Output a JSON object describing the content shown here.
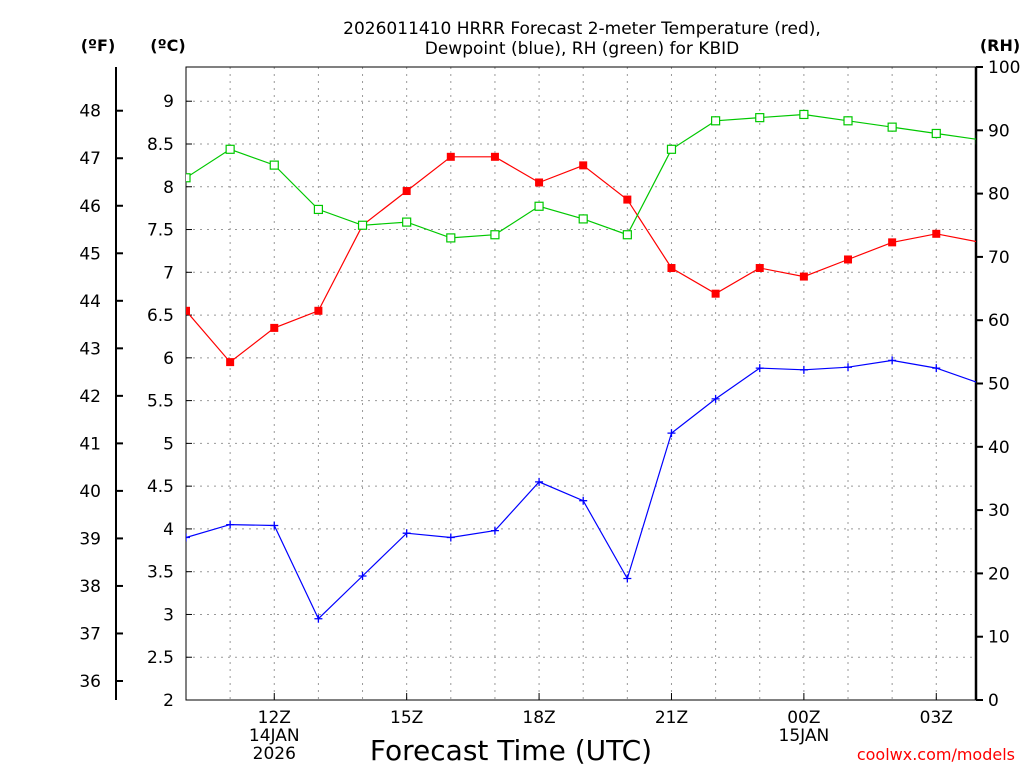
{
  "chart_data": {
    "type": "line",
    "title_line1": "2026011410 HRRR Forecast 2-meter Temperature (red),",
    "title_line2": "Dewpoint (blue), RH (green) for KBID",
    "xlabel": "Forecast Time (UTC)",
    "credit": "coolwx.com/models",
    "unit_f": "(ºF)",
    "unit_c": "(ºC)",
    "unit_rh": "(RH)",
    "colors": {
      "temperature": "#ff0000",
      "dewpoint": "#0000ff",
      "rh": "#00c800",
      "grid": "#999999"
    },
    "x": [
      "10Z",
      "11Z",
      "12Z",
      "13Z",
      "14Z",
      "15Z",
      "16Z",
      "17Z",
      "18Z",
      "19Z",
      "20Z",
      "21Z",
      "22Z",
      "23Z",
      "00Z",
      "01Z",
      "02Z",
      "03Z",
      "04Z"
    ],
    "xlim": [
      10,
      27.9
    ],
    "x_ticks": [
      {
        "hour": 12,
        "lines": [
          "12Z",
          "14JAN",
          "2026"
        ]
      },
      {
        "hour": 15,
        "lines": [
          "15Z"
        ]
      },
      {
        "hour": 18,
        "lines": [
          "18Z"
        ]
      },
      {
        "hour": 21,
        "lines": [
          "21Z"
        ]
      },
      {
        "hour": 24,
        "lines": [
          "00Z",
          "15JAN"
        ]
      },
      {
        "hour": 27,
        "lines": [
          "03Z"
        ]
      }
    ],
    "ylim_c": [
      2,
      9.4
    ],
    "y_ticks_c": [
      "2",
      "2.5",
      "3",
      "3.5",
      "4",
      "4.5",
      "5",
      "5.5",
      "6",
      "6.5",
      "7",
      "7.5",
      "8",
      "8.5",
      "9"
    ],
    "y_ticks_f": [
      "36",
      "37",
      "38",
      "39",
      "40",
      "41",
      "42",
      "43",
      "44",
      "45",
      "46",
      "47",
      "48"
    ],
    "ylim_rh": [
      0,
      100
    ],
    "y_ticks_rh": [
      "0",
      "10",
      "20",
      "30",
      "40",
      "50",
      "60",
      "70",
      "80",
      "90",
      "100"
    ],
    "series": [
      {
        "name": "Temperature",
        "key": "temperature",
        "units": "C",
        "marker": "filled-square",
        "values": [
          6.55,
          5.95,
          6.35,
          6.55,
          7.55,
          7.95,
          8.35,
          8.35,
          8.05,
          8.25,
          7.85,
          7.05,
          6.75,
          7.05,
          6.95,
          7.15,
          7.35,
          7.45,
          7.35
        ]
      },
      {
        "name": "Dewpoint",
        "key": "dewpoint",
        "units": "C",
        "marker": "plus",
        "values": [
          3.9,
          4.05,
          4.04,
          2.95,
          3.45,
          3.95,
          3.9,
          3.98,
          4.55,
          4.33,
          3.42,
          5.12,
          5.52,
          5.88,
          5.86,
          5.89,
          5.97,
          5.88,
          5.7
        ]
      },
      {
        "name": "RH",
        "key": "rh",
        "units": "%",
        "marker": "open-square",
        "values": [
          82.5,
          87.0,
          84.5,
          77.5,
          75.0,
          75.5,
          73.0,
          73.5,
          78.0,
          76.0,
          73.5,
          87.0,
          91.5,
          92.0,
          92.5,
          91.5,
          90.5,
          89.5,
          88.5
        ]
      }
    ]
  }
}
